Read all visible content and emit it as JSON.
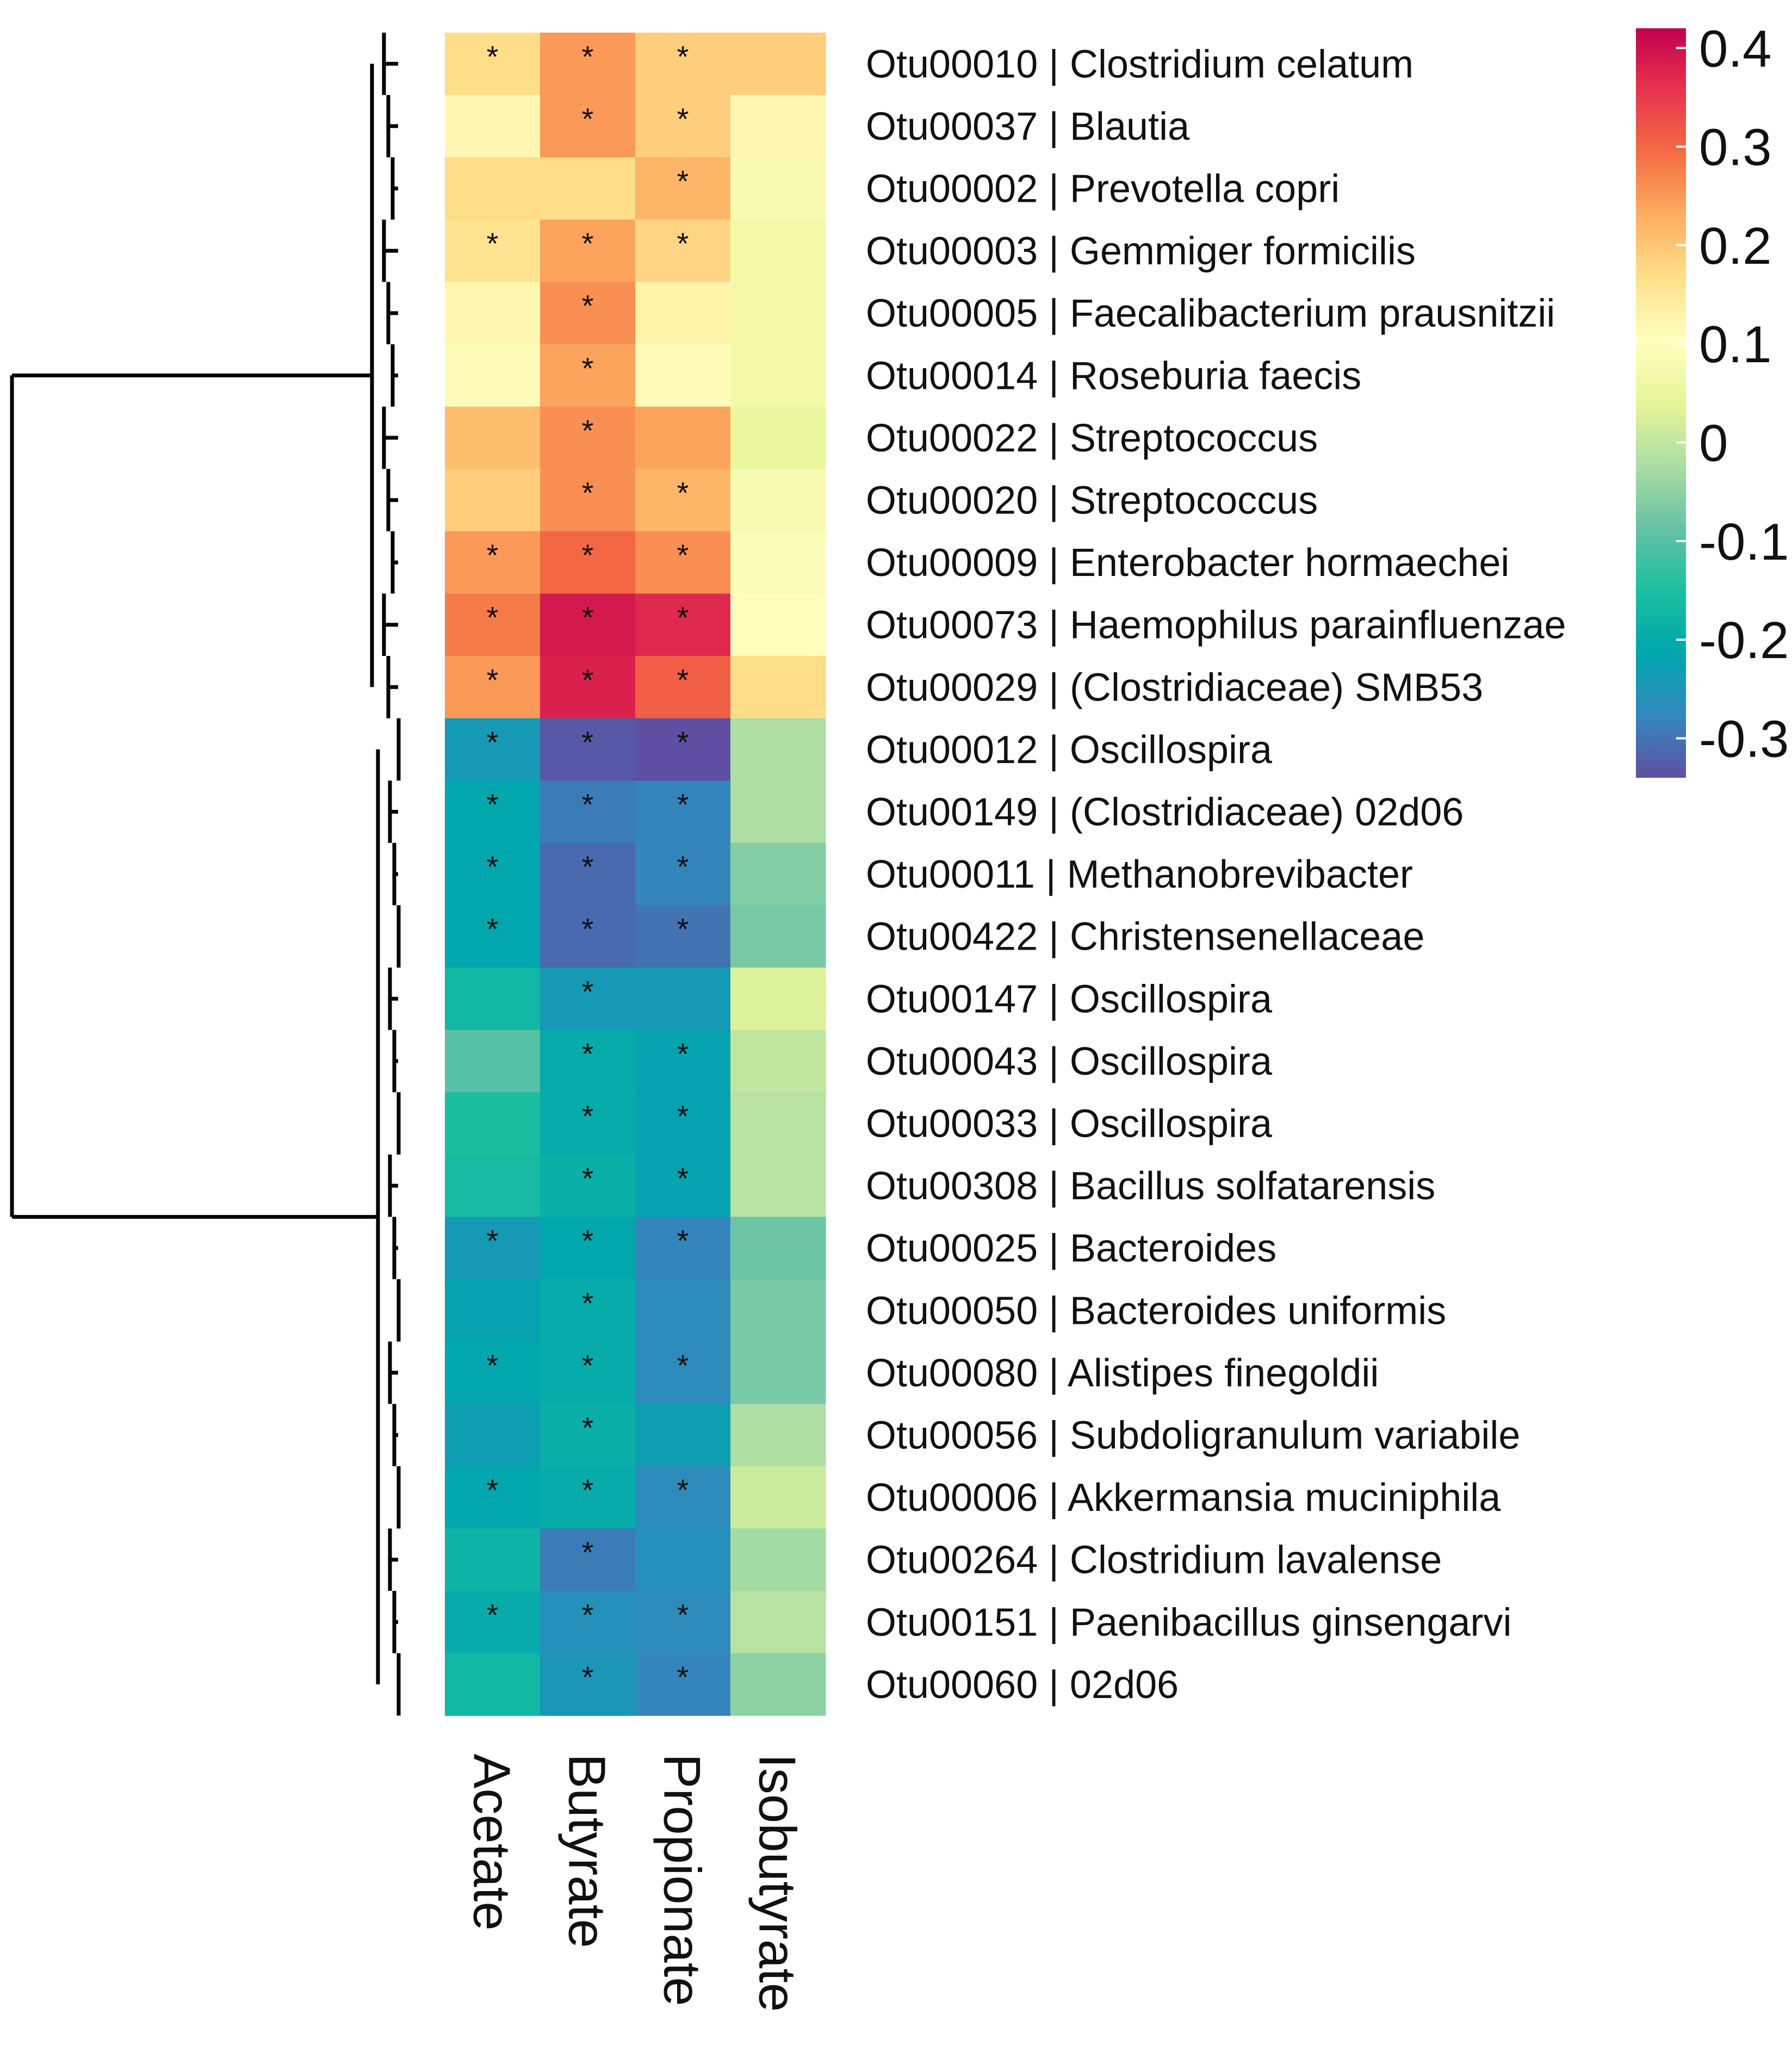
{
  "chart_data": {
    "type": "heatmap",
    "title": "",
    "columns": [
      "Acetate",
      "Butyrate",
      "Propionate",
      "Isobutyrate"
    ],
    "rows": [
      "Otu00010 | Clostridium celatum",
      "Otu00037 | Blautia",
      "Otu00002 | Prevotella copri",
      "Otu00003 | Gemmiger formicilis",
      "Otu00005 | Faecalibacterium prausnitzii",
      "Otu00014 | Roseburia faecis",
      "Otu00022 | Streptococcus",
      "Otu00020 | Streptococcus",
      "Otu00009 | Enterobacter hormaechei",
      "Otu00073 | Haemophilus parainfluenzae",
      "Otu00029 | (Clostridiaceae) SMB53",
      "Otu00012 | Oscillospira",
      "Otu00149 | (Clostridiaceae) 02d06",
      "Otu00011 | Methanobrevibacter",
      "Otu00422 | Christensenellaceae",
      "Otu00147 | Oscillospira",
      "Otu00043 | Oscillospira",
      "Otu00033 | Oscillospira",
      "Otu00308 | Bacillus solfatarensis",
      "Otu00025 | Bacteroides",
      "Otu00050 | Bacteroides uniformis",
      "Otu00080 | Alistipes finegoldii",
      "Otu00056 | Subdoligranulum variabile",
      "Otu00006 | Akkermansia muciniphila",
      "Otu00264 | Clostridium lavalense",
      "Otu00151 | Paenibacillus ginsengarvi",
      "Otu00060 | 02d06"
    ],
    "values": [
      [
        0.17,
        0.25,
        0.19,
        0.19
      ],
      [
        0.12,
        0.25,
        0.19,
        0.12
      ],
      [
        0.17,
        0.17,
        0.22,
        0.08
      ],
      [
        0.16,
        0.24,
        0.18,
        0.07
      ],
      [
        0.12,
        0.26,
        0.13,
        0.07
      ],
      [
        0.11,
        0.24,
        0.11,
        0.07
      ],
      [
        0.21,
        0.26,
        0.24,
        0.05
      ],
      [
        0.19,
        0.26,
        0.22,
        0.08
      ],
      [
        0.25,
        0.3,
        0.26,
        0.09
      ],
      [
        0.28,
        0.39,
        0.37,
        0.1
      ],
      [
        0.25,
        0.38,
        0.31,
        0.17
      ],
      [
        -0.24,
        -0.33,
        -0.34,
        -0.02
      ],
      [
        -0.21,
        -0.29,
        -0.28,
        -0.02
      ],
      [
        -0.21,
        -0.31,
        -0.28,
        -0.06
      ],
      [
        -0.21,
        -0.31,
        -0.3,
        -0.07
      ],
      [
        -0.17,
        -0.24,
        -0.24,
        0.03
      ],
      [
        -0.1,
        -0.2,
        -0.22,
        0.0
      ],
      [
        -0.15,
        -0.2,
        -0.22,
        -0.01
      ],
      [
        -0.16,
        -0.19,
        -0.22,
        -0.01
      ],
      [
        -0.24,
        -0.21,
        -0.28,
        -0.08
      ],
      [
        -0.22,
        -0.2,
        -0.27,
        -0.07
      ],
      [
        -0.21,
        -0.2,
        -0.27,
        -0.07
      ],
      [
        -0.23,
        -0.19,
        -0.23,
        -0.02
      ],
      [
        -0.21,
        -0.2,
        -0.27,
        0.01
      ],
      [
        -0.18,
        -0.29,
        -0.26,
        -0.03
      ],
      [
        -0.2,
        -0.26,
        -0.27,
        -0.01
      ],
      [
        -0.17,
        -0.25,
        -0.28,
        -0.05
      ]
    ],
    "significance_marker": "*",
    "significant": [
      [
        1,
        1,
        1,
        0
      ],
      [
        0,
        1,
        1,
        0
      ],
      [
        0,
        0,
        1,
        0
      ],
      [
        1,
        1,
        1,
        0
      ],
      [
        0,
        1,
        0,
        0
      ],
      [
        0,
        1,
        0,
        0
      ],
      [
        0,
        1,
        0,
        0
      ],
      [
        0,
        1,
        1,
        0
      ],
      [
        1,
        1,
        1,
        0
      ],
      [
        1,
        1,
        1,
        0
      ],
      [
        1,
        1,
        1,
        0
      ],
      [
        1,
        1,
        1,
        0
      ],
      [
        1,
        1,
        1,
        0
      ],
      [
        1,
        1,
        1,
        0
      ],
      [
        1,
        1,
        1,
        0
      ],
      [
        0,
        1,
        0,
        0
      ],
      [
        0,
        1,
        1,
        0
      ],
      [
        0,
        1,
        1,
        0
      ],
      [
        0,
        1,
        1,
        0
      ],
      [
        1,
        1,
        1,
        0
      ],
      [
        0,
        1,
        0,
        0
      ],
      [
        1,
        1,
        1,
        0
      ],
      [
        0,
        1,
        0,
        0
      ],
      [
        1,
        1,
        1,
        0
      ],
      [
        0,
        1,
        0,
        0
      ],
      [
        1,
        1,
        1,
        0
      ],
      [
        0,
        1,
        1,
        0
      ]
    ],
    "colorbar": {
      "range": [
        -0.34,
        0.42
      ],
      "ticks": [
        0.4,
        0.3,
        0.2,
        0.1,
        0,
        -0.1,
        -0.2,
        -0.3
      ],
      "tick_labels": [
        "0.4",
        "0.3",
        "0.2",
        "0.1",
        "0",
        "-0.1",
        "-0.2",
        "-0.3"
      ],
      "colors": [
        "#5e4fa2",
        "#3288bd",
        "#00a6ad",
        "#1bbf9f",
        "#66c2a5",
        "#abdda4",
        "#e6f598",
        "#ffffbf",
        "#fee08b",
        "#fdae61",
        "#f46d43",
        "#e8344e",
        "#c2004f"
      ],
      "placement": "right"
    },
    "dendrogram": {
      "side": "left",
      "clusters": [
        {
          "rows": [
            0,
            10
          ]
        },
        {
          "rows": [
            11,
            26
          ]
        }
      ]
    }
  }
}
